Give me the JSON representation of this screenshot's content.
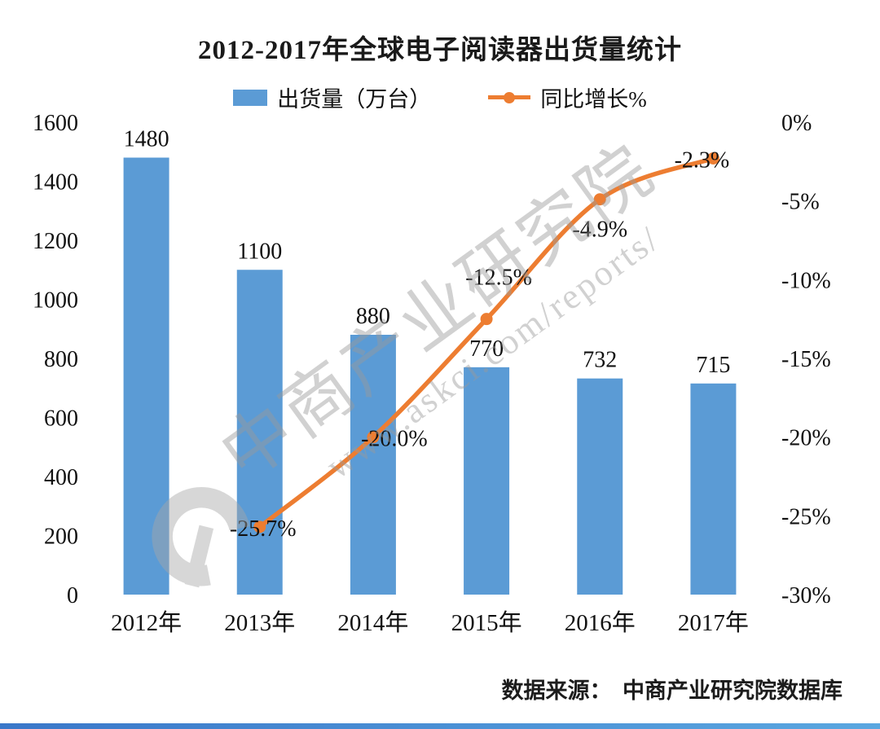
{
  "title": "2012-2017年全球电子阅读器出货量统计",
  "legend": {
    "bar_label": "出货量（万台）",
    "line_label": "同比增长%"
  },
  "watermark": {
    "brand": "中商产业研究院",
    "url": "www.askci.com/reports/"
  },
  "footer": {
    "text": "数据来源：　中商产业研究院数据库"
  },
  "colors": {
    "bar": "#5B9BD5",
    "line": "#ED7D31"
  },
  "chart_data": {
    "type": "bar",
    "combo": "bar+line",
    "title": "2012-2017年全球电子阅读器出货量统计",
    "categories": [
      "2012年",
      "2013年",
      "2014年",
      "2015年",
      "2016年",
      "2017年"
    ],
    "series": [
      {
        "name": "出货量（万台）",
        "type": "bar",
        "axis": "left",
        "color": "#5B9BD5",
        "values": [
          1480,
          1100,
          880,
          770,
          732,
          715
        ],
        "labels": [
          "1480",
          "1100",
          "880",
          "770",
          "732",
          "715"
        ]
      },
      {
        "name": "同比增长%",
        "type": "line",
        "axis": "right",
        "color": "#ED7D31",
        "values": [
          null,
          -25.7,
          -20.0,
          -12.5,
          -4.9,
          -2.3
        ],
        "labels": [
          "",
          "-25.7%",
          "-20.0%",
          "-12.5%",
          "-4.9%",
          "-2.3%"
        ]
      }
    ],
    "left_axis": {
      "min": 0,
      "max": 1600,
      "step": 200,
      "ticks": [
        "0",
        "200",
        "400",
        "600",
        "800",
        "1000",
        "1200",
        "1400",
        "1600"
      ]
    },
    "right_axis": {
      "max": 0,
      "min": -30,
      "step": 5,
      "ticks": [
        "0%",
        "-5%",
        "-10%",
        "-15%",
        "-20%",
        "-25%",
        "-30%"
      ]
    },
    "legend_position": "top",
    "grid": false
  }
}
